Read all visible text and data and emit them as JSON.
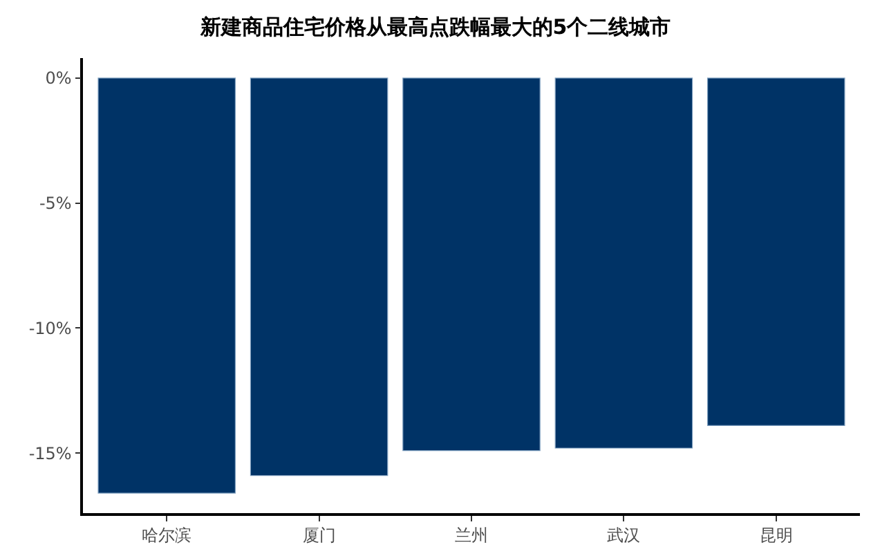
{
  "chart_data": {
    "type": "bar",
    "title": "新建商品住宅价格从最高点跌幅最大的5个二线城市",
    "categories": [
      "哈尔滨",
      "厦门",
      "兰州",
      "武汉",
      "昆明"
    ],
    "values": [
      -16.6,
      -15.9,
      -14.9,
      -14.8,
      -13.9
    ],
    "color": "#003366",
    "ylim": [
      -17.4,
      0.8
    ],
    "yticks": [
      {
        "value": 0,
        "label": "0%"
      },
      {
        "value": -5,
        "label": "-5%"
      },
      {
        "value": -10,
        "label": "-10%"
      },
      {
        "value": -15,
        "label": "-15%"
      }
    ]
  }
}
